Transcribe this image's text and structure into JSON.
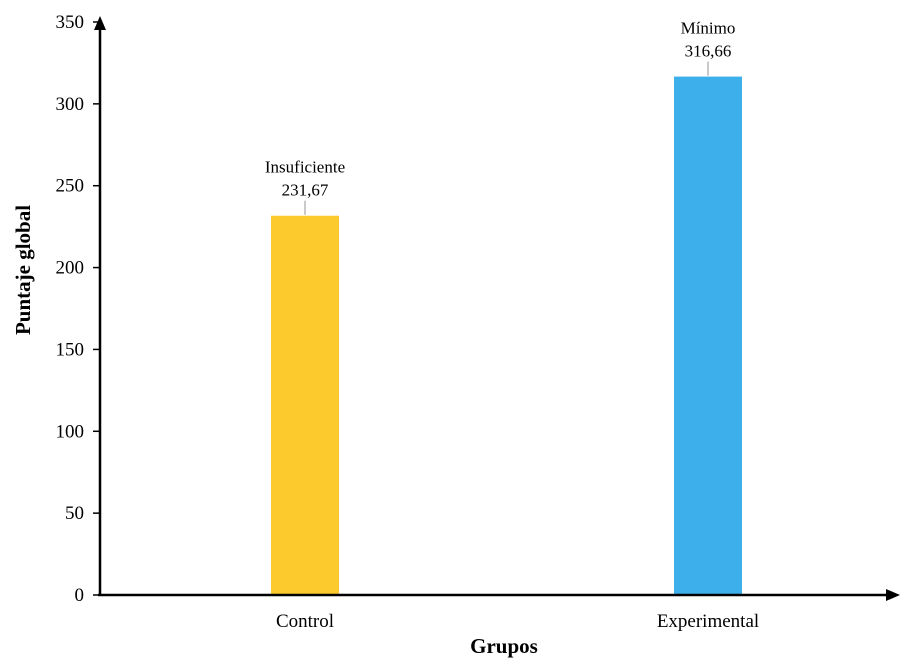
{
  "chart_data": {
    "type": "bar",
    "title": "",
    "xlabel": "Grupos",
    "ylabel": "Puntaje global",
    "categories": [
      "Control",
      "Experimental"
    ],
    "values": [
      231.67,
      316.66
    ],
    "value_labels": [
      "231,67",
      "316,66"
    ],
    "category_labels": [
      "Insuficiente",
      "Mínimo"
    ],
    "colors": [
      "#FDCA2D",
      "#3DAFEA"
    ],
    "ylim": [
      0,
      350
    ],
    "yticks": [
      0,
      50,
      100,
      150,
      200,
      250,
      300,
      350
    ],
    "grid": false,
    "legend": "none"
  }
}
